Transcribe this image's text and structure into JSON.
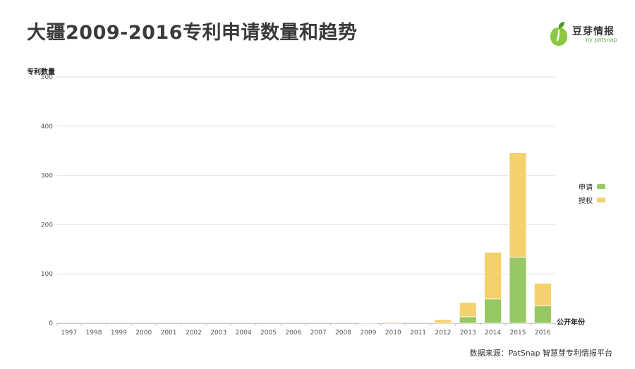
{
  "header": {
    "title": "大疆2009-2016专利申请数量和趋势"
  },
  "logo": {
    "name": "豆芽情报",
    "sub": "by patsnap",
    "icon": "sprout-logo-icon",
    "colors": {
      "green": "#8dc63f",
      "dark_green": "#4f9a2e"
    }
  },
  "source_note": "数据来源：PatSnap 智慧芽专利情报平台",
  "chart_data": {
    "type": "bar",
    "stacked": true,
    "ylabel": "专利数量",
    "xlabel": "公开年份",
    "ylim": [
      0,
      500
    ],
    "yticks": [
      0,
      100,
      200,
      300,
      400,
      500
    ],
    "grid": true,
    "legend_position": "right",
    "categories": [
      "1997",
      "1998",
      "1999",
      "2000",
      "2001",
      "2002",
      "2003",
      "2004",
      "2005",
      "2006",
      "2007",
      "2008",
      "2009",
      "2010",
      "2011",
      "2012",
      "2013",
      "2014",
      "2015",
      "2016"
    ],
    "series": [
      {
        "name": "申请",
        "color": "#96c864",
        "values": [
          0,
          0,
          0,
          0,
          0,
          0,
          0,
          0,
          0,
          0,
          0,
          0,
          0,
          0,
          0,
          0,
          13,
          49,
          134,
          35
        ]
      },
      {
        "name": "授权",
        "color": "#f5d16e",
        "values": [
          0,
          0,
          0,
          0,
          0,
          0,
          0,
          0,
          0,
          0,
          0,
          0,
          1,
          2,
          0,
          7,
          29,
          95,
          212,
          46
        ]
      }
    ]
  }
}
